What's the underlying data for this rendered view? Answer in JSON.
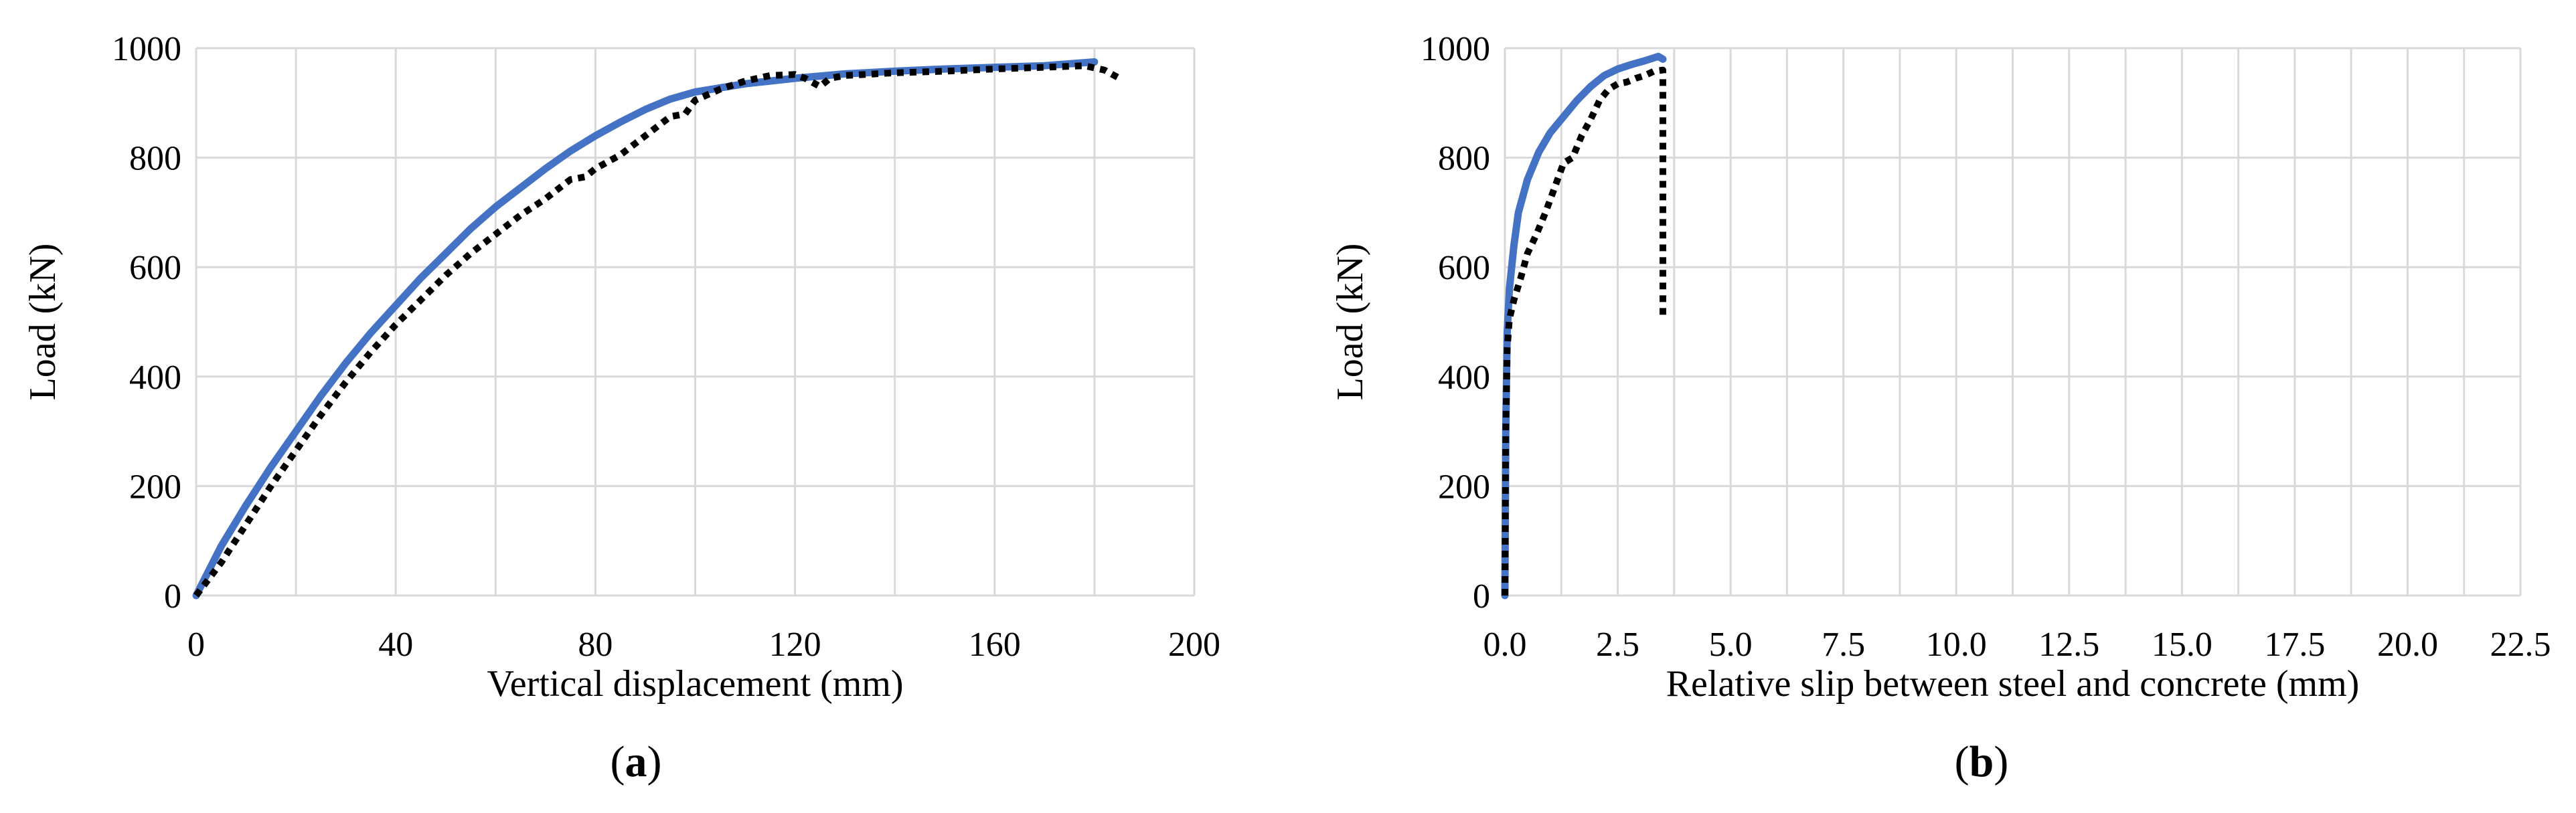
{
  "chart_data": [
    {
      "id": "a",
      "type": "line",
      "panel_label_prefix": "(",
      "panel_label_letter": "a",
      "panel_label_suffix": ")",
      "xlabel": "Vertical displacement (mm)",
      "ylabel": "Load (kN)",
      "xlim": [
        0,
        200
      ],
      "ylim": [
        0,
        1000
      ],
      "xticks": [
        0,
        40,
        80,
        120,
        160,
        200
      ],
      "xtick_labels": [
        "0",
        "40",
        "80",
        "120",
        "160",
        "200"
      ],
      "yticks": [
        0,
        200,
        400,
        600,
        800,
        1000
      ],
      "ytick_labels": [
        "0",
        "200",
        "400",
        "600",
        "800",
        "1000"
      ],
      "xgrid_step": 20,
      "grid": true,
      "legend": "none",
      "series": [
        {
          "style": "solid",
          "color": "#4472C4",
          "points": [
            [
              0,
              0
            ],
            [
              5,
              90
            ],
            [
              10,
              165
            ],
            [
              15,
              235
            ],
            [
              20,
              300
            ],
            [
              25,
              365
            ],
            [
              30,
              425
            ],
            [
              35,
              480
            ],
            [
              40,
              530
            ],
            [
              45,
              580
            ],
            [
              50,
              625
            ],
            [
              55,
              670
            ],
            [
              60,
              710
            ],
            [
              65,
              745
            ],
            [
              70,
              780
            ],
            [
              75,
              812
            ],
            [
              80,
              840
            ],
            [
              85,
              865
            ],
            [
              90,
              888
            ],
            [
              95,
              907
            ],
            [
              100,
              920
            ],
            [
              110,
              935
            ],
            [
              120,
              945
            ],
            [
              130,
              953
            ],
            [
              140,
              958
            ],
            [
              150,
              962
            ],
            [
              160,
              965
            ],
            [
              170,
              968
            ],
            [
              180,
              975
            ]
          ]
        },
        {
          "style": "dotted",
          "color": "#000000",
          "points": [
            [
              0,
              0
            ],
            [
              5,
              60
            ],
            [
              10,
              130
            ],
            [
              15,
              200
            ],
            [
              20,
              265
            ],
            [
              25,
              330
            ],
            [
              30,
              390
            ],
            [
              35,
              445
            ],
            [
              40,
              495
            ],
            [
              45,
              540
            ],
            [
              50,
              585
            ],
            [
              55,
              625
            ],
            [
              60,
              660
            ],
            [
              65,
              695
            ],
            [
              70,
              725
            ],
            [
              75,
              760
            ],
            [
              78,
              765
            ],
            [
              80,
              780
            ],
            [
              85,
              805
            ],
            [
              90,
              840
            ],
            [
              95,
              875
            ],
            [
              98,
              880
            ],
            [
              100,
              905
            ],
            [
              105,
              925
            ],
            [
              110,
              940
            ],
            [
              115,
              950
            ],
            [
              120,
              952
            ],
            [
              122,
              945
            ],
            [
              125,
              930
            ],
            [
              127,
              945
            ],
            [
              130,
              950
            ],
            [
              140,
              955
            ],
            [
              150,
              958
            ],
            [
              160,
              962
            ],
            [
              170,
              965
            ],
            [
              178,
              968
            ],
            [
              182,
              960
            ],
            [
              185,
              945
            ]
          ]
        }
      ]
    },
    {
      "id": "b",
      "type": "line",
      "panel_label_prefix": "(",
      "panel_label_letter": "b",
      "panel_label_suffix": ")",
      "xlabel": "Relative slip between steel and concrete (mm)",
      "ylabel": "Load (kN)",
      "xlim": [
        0,
        22.5
      ],
      "ylim": [
        0,
        1000
      ],
      "xticks": [
        0,
        2.5,
        5,
        7.5,
        10,
        12.5,
        15,
        17.5,
        20,
        22.5
      ],
      "xtick_labels": [
        "0.0",
        "2.5",
        "5.0",
        "7.5",
        "10.0",
        "12.5",
        "15.0",
        "17.5",
        "20.0",
        "22.5"
      ],
      "yticks": [
        0,
        200,
        400,
        600,
        800,
        1000
      ],
      "ytick_labels": [
        "0",
        "200",
        "400",
        "600",
        "800",
        "1000"
      ],
      "xgrid_step": 1.25,
      "grid": true,
      "legend": "none",
      "series": [
        {
          "style": "solid",
          "color": "#4472C4",
          "points": [
            [
              0,
              0
            ],
            [
              0.02,
              300
            ],
            [
              0.05,
              480
            ],
            [
              0.1,
              560
            ],
            [
              0.2,
              640
            ],
            [
              0.3,
              700
            ],
            [
              0.5,
              760
            ],
            [
              0.75,
              810
            ],
            [
              1.0,
              845
            ],
            [
              1.3,
              875
            ],
            [
              1.6,
              905
            ],
            [
              1.9,
              930
            ],
            [
              2.2,
              950
            ],
            [
              2.5,
              962
            ],
            [
              2.8,
              970
            ],
            [
              3.1,
              977
            ],
            [
              3.4,
              985
            ],
            [
              3.5,
              980
            ]
          ]
        },
        {
          "style": "dotted",
          "color": "#000000",
          "points": [
            [
              0,
              0
            ],
            [
              0.02,
              300
            ],
            [
              0.05,
              450
            ],
            [
              0.1,
              505
            ],
            [
              0.2,
              540
            ],
            [
              0.35,
              580
            ],
            [
              0.5,
              625
            ],
            [
              0.7,
              660
            ],
            [
              0.9,
              700
            ],
            [
              1.1,
              745
            ],
            [
              1.3,
              790
            ],
            [
              1.5,
              800
            ],
            [
              1.7,
              840
            ],
            [
              1.9,
              870
            ],
            [
              2.1,
              905
            ],
            [
              2.3,
              925
            ],
            [
              2.5,
              935
            ],
            [
              2.7,
              938
            ],
            [
              2.9,
              945
            ],
            [
              3.1,
              950
            ],
            [
              3.3,
              958
            ],
            [
              3.5,
              960
            ],
            [
              3.5,
              510
            ]
          ]
        }
      ]
    }
  ]
}
